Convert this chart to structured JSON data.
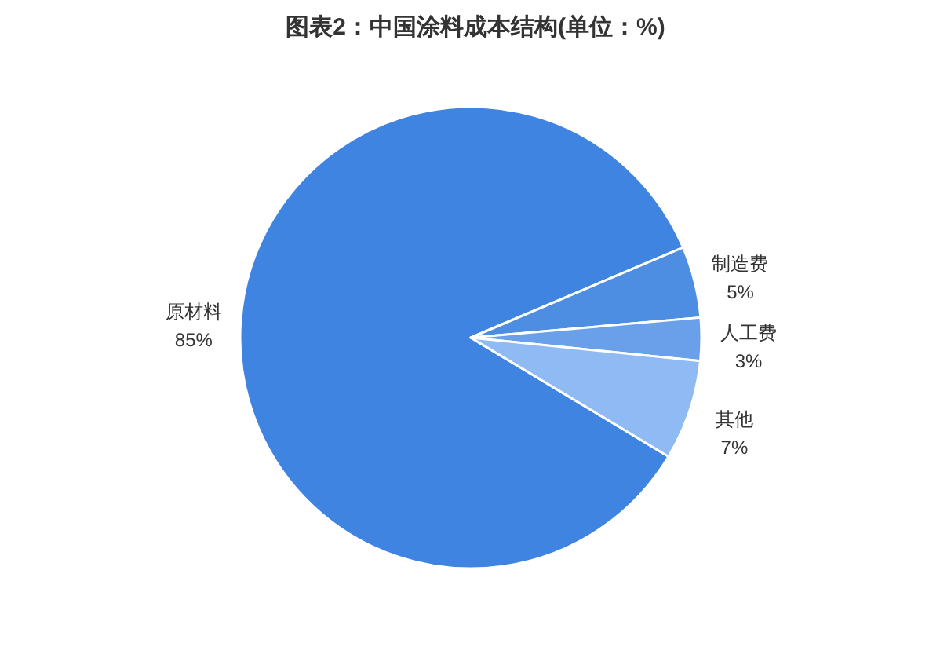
{
  "chart_data": {
    "type": "pie",
    "title": "图表2：中国涂料成本结构(单位：%)",
    "categories": [
      "原材料",
      "制造费",
      "人工费",
      "其他"
    ],
    "values": [
      85,
      5,
      3,
      7
    ],
    "colors": [
      "#3f84e0",
      "#4d8ee3",
      "#6aa0ea",
      "#8fbaf3"
    ],
    "value_labels": [
      "85%",
      "5%",
      "3%",
      "7%"
    ]
  }
}
